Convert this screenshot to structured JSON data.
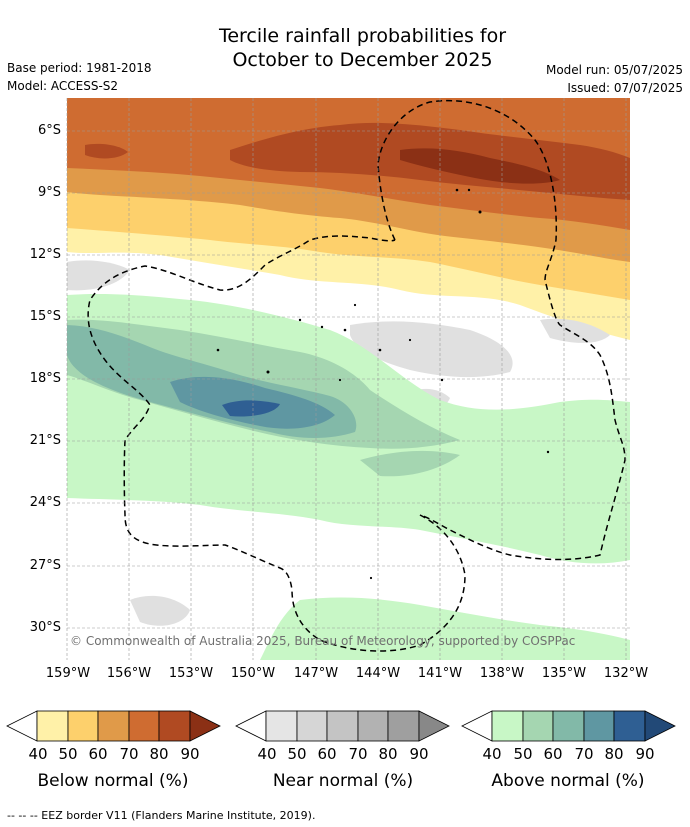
{
  "title_line1": "Tercile rainfall probabilities for",
  "title_line2": "October to December 2025",
  "base_period": "Base period: 1981-2018",
  "model": "Model: ACCESS-S2",
  "model_run": "Model run: 05/07/2025",
  "issued": "Issued: 07/07/2025",
  "lat_labels": [
    "6°S",
    "9°S",
    "12°S",
    "15°S",
    "18°S",
    "21°S",
    "24°S",
    "27°S",
    "30°S"
  ],
  "lon_labels": [
    "159°W",
    "156°W",
    "153°W",
    "150°W",
    "147°W",
    "144°W",
    "141°W",
    "138°W",
    "135°W",
    "132°W"
  ],
  "copyright": "© Commonwealth of Australia 2025, Bureau of Meteorology, supported by COSPPac",
  "colorbars": [
    {
      "title": "Below normal (%)",
      "ticks": [
        "40",
        "50",
        "60",
        "70",
        "80",
        "90"
      ],
      "colors": [
        "#fff1a8",
        "#fdd06c",
        "#e09a49",
        "#cf6c31",
        "#b04a22",
        "#8b3015"
      ]
    },
    {
      "title": "Near normal (%)",
      "ticks": [
        "40",
        "50",
        "60",
        "70",
        "80",
        "90"
      ],
      "colors": [
        "#e5e5e5",
        "#d6d6d6",
        "#c4c4c4",
        "#b2b2b2",
        "#9f9f9f",
        "#888888"
      ]
    },
    {
      "title": "Above normal (%)",
      "ticks": [
        "40",
        "50",
        "60",
        "70",
        "80",
        "90"
      ],
      "colors": [
        "#c8f7c6",
        "#a5d6b1",
        "#82b9a8",
        "#5f97a2",
        "#2f5f93",
        "#224977"
      ]
    }
  ],
  "eez_note": "-- -- -- EEZ border V11 (Flanders Marine Institute, 2019)."
}
